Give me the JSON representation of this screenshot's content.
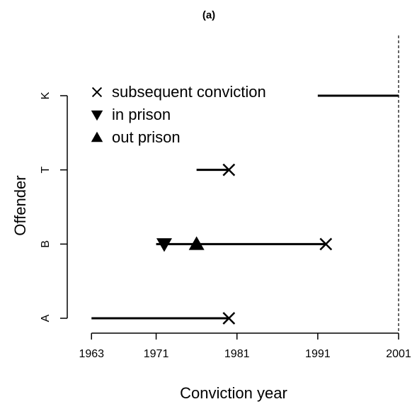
{
  "chart_data": {
    "type": "timeline",
    "title": "(a)",
    "xlabel": "Conviction year",
    "ylabel": "Offender",
    "categories": [
      "A",
      "B",
      "T",
      "K"
    ],
    "start": [
      1963,
      1971,
      1976,
      1991
    ],
    "end": [
      1980,
      1992,
      1980,
      2001
    ],
    "series": [
      {
        "name": "subsequent conviction",
        "marker": "x",
        "color": "#000000",
        "x": [
          1980,
          1992,
          1980,
          null
        ]
      },
      {
        "name": "in prison",
        "marker": "triangle-down",
        "color": "#000000",
        "x": [
          null,
          1972,
          null,
          null
        ]
      },
      {
        "name": "out prison",
        "marker": "triangle-up",
        "color": "#000000",
        "x": [
          null,
          1976,
          null,
          null
        ]
      }
    ],
    "observation_end": 2001,
    "xlim": [
      1960,
      2001
    ],
    "xticks": [
      1963,
      1971,
      1981,
      1991,
      2001
    ],
    "legend": "upper left"
  }
}
